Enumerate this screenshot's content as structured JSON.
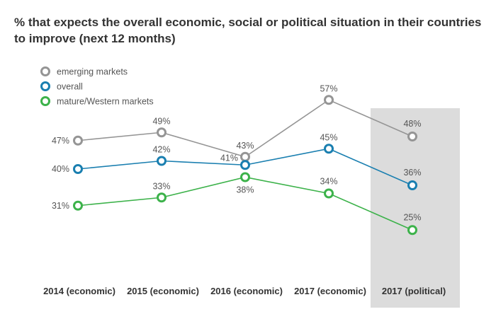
{
  "title": "% that expects the overall economic, social or political situation in their countries to improve (next 12 months)",
  "chart_data": {
    "type": "line",
    "title": "% that expects the overall economic, social or political situation in their countries to improve (next 12 months)",
    "categories": [
      "2014 (economic)",
      "2015 (economic)",
      "2016 (economic)",
      "2017 (economic)",
      "2017 (political)"
    ],
    "highlighted_category": "2017 (political)",
    "xlabel": "",
    "ylabel": "",
    "ylim": [
      20,
      60
    ],
    "grid": false,
    "legend_position": "top-left",
    "series": [
      {
        "name": "emerging markets",
        "color": "#959595",
        "values": [
          47,
          49,
          43,
          57,
          48
        ],
        "labels": [
          "47%",
          "49%",
          "43%",
          "57%",
          "48%"
        ]
      },
      {
        "name": "overall",
        "color": "#1a7fb0",
        "values": [
          40,
          42,
          41,
          45,
          36
        ],
        "labels": [
          "40%",
          "42%",
          "41%",
          "45%",
          "36%"
        ]
      },
      {
        "name": "mature/Western markets",
        "color": "#3cb24a",
        "values": [
          31,
          33,
          38,
          34,
          25
        ],
        "labels": [
          "31%",
          "33%",
          "38%",
          "34%",
          "25%"
        ]
      }
    ]
  },
  "colors": {
    "highlight_band": "#dcdcdc",
    "text": "#333333"
  }
}
